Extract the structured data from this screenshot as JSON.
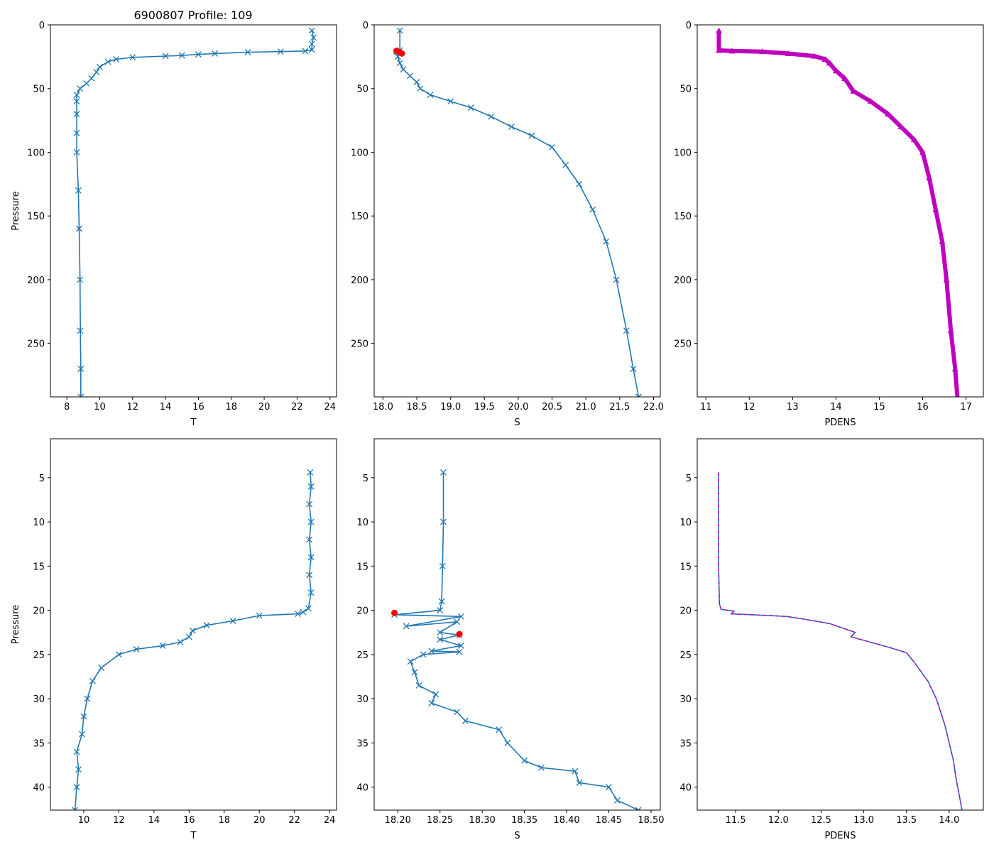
{
  "figure_title": "6900807 Profile: 109",
  "colors": {
    "series": "#1f77b4",
    "density": "#bf00bf",
    "flag": "#ff0000",
    "axis": "#000000"
  },
  "chart_data": [
    {
      "type": "line",
      "panel": "top-left",
      "title": "6900807 Profile: 109",
      "xlabel": "T",
      "ylabel": "Pressure",
      "xlim": [
        7.0,
        24.4
      ],
      "ylim": [
        292,
        0
      ],
      "xticks": [
        8,
        10,
        12,
        14,
        16,
        18,
        20,
        22,
        24
      ],
      "yticks": [
        0,
        50,
        100,
        150,
        200,
        250
      ],
      "marker": "x",
      "series": [
        {
          "name": "T",
          "color": "#1f77b4",
          "points": [
            [
              22.9,
              4.5
            ],
            [
              23.0,
              10
            ],
            [
              22.9,
              15
            ],
            [
              22.9,
              19.5
            ],
            [
              22.5,
              20.5
            ],
            [
              21.0,
              21
            ],
            [
              19.0,
              21.5
            ],
            [
              17.0,
              22.5
            ],
            [
              16.0,
              23.2
            ],
            [
              15.0,
              24
            ],
            [
              14.0,
              24.5
            ],
            [
              12.0,
              25.5
            ],
            [
              11.0,
              27
            ],
            [
              10.5,
              29
            ],
            [
              10.0,
              33
            ],
            [
              9.8,
              37
            ],
            [
              9.5,
              42
            ],
            [
              9.2,
              46
            ],
            [
              8.8,
              50
            ],
            [
              8.6,
              55
            ],
            [
              8.6,
              60
            ],
            [
              8.6,
              70
            ],
            [
              8.6,
              85
            ],
            [
              8.6,
              100
            ],
            [
              8.7,
              130
            ],
            [
              8.75,
              160
            ],
            [
              8.8,
              200
            ],
            [
              8.82,
              240
            ],
            [
              8.85,
              270
            ],
            [
              8.85,
              292
            ]
          ]
        }
      ]
    },
    {
      "type": "line",
      "panel": "top-middle",
      "xlabel": "S",
      "ylabel": "",
      "xlim": [
        17.87,
        22.1
      ],
      "ylim": [
        292,
        0
      ],
      "xticks": [
        18.0,
        18.5,
        19.0,
        19.5,
        20.0,
        20.5,
        21.0,
        21.5,
        22.0
      ],
      "yticks": [
        0,
        50,
        100,
        150,
        200,
        250
      ],
      "marker": "x",
      "series": [
        {
          "name": "S",
          "color": "#1f77b4",
          "points": [
            [
              18.25,
              4.5
            ],
            [
              18.25,
              20
            ],
            [
              18.2,
              21
            ],
            [
              18.22,
              25
            ],
            [
              18.25,
              30
            ],
            [
              18.3,
              35
            ],
            [
              18.4,
              40
            ],
            [
              18.5,
              45
            ],
            [
              18.55,
              50
            ],
            [
              18.7,
              55
            ],
            [
              19.0,
              60
            ],
            [
              19.3,
              65
            ],
            [
              19.6,
              72
            ],
            [
              19.9,
              80
            ],
            [
              20.2,
              87
            ],
            [
              20.5,
              96
            ],
            [
              20.7,
              110
            ],
            [
              20.9,
              125
            ],
            [
              21.1,
              145
            ],
            [
              21.3,
              170
            ],
            [
              21.45,
              200
            ],
            [
              21.6,
              240
            ],
            [
              21.7,
              270
            ],
            [
              21.78,
              292
            ]
          ]
        }
      ],
      "flags": {
        "name": "flagged",
        "color": "#ff0000",
        "points": [
          [
            18.2,
            20.5
          ],
          [
            18.25,
            21.5
          ],
          [
            18.28,
            22.5
          ]
        ]
      }
    },
    {
      "type": "scatter",
      "panel": "top-right",
      "xlabel": "PDENS",
      "ylabel": "",
      "xlim": [
        10.8,
        17.4
      ],
      "ylim": [
        292,
        0
      ],
      "xticks": [
        11,
        12,
        13,
        14,
        15,
        16,
        17
      ],
      "yticks": [
        0,
        50,
        100,
        150,
        200,
        250
      ],
      "marker": "^",
      "series": [
        {
          "name": "PDENS",
          "color": "#bf00bf",
          "points": [
            [
              11.3,
              4.5
            ],
            [
              11.3,
              20
            ],
            [
              11.6,
              20.5
            ],
            [
              12.3,
              21
            ],
            [
              12.9,
              22.5
            ],
            [
              13.5,
              24.5
            ],
            [
              13.75,
              27
            ],
            [
              13.85,
              30
            ],
            [
              14.0,
              36
            ],
            [
              14.2,
              42
            ],
            [
              14.4,
              52
            ],
            [
              14.8,
              60
            ],
            [
              15.2,
              70
            ],
            [
              15.5,
              80
            ],
            [
              15.8,
              90
            ],
            [
              16.0,
              100
            ],
            [
              16.15,
              120
            ],
            [
              16.3,
              145
            ],
            [
              16.45,
              170
            ],
            [
              16.55,
              200
            ],
            [
              16.65,
              240
            ],
            [
              16.75,
              270
            ],
            [
              16.8,
              292
            ]
          ]
        }
      ]
    },
    {
      "type": "line",
      "panel": "bottom-left",
      "xlabel": "T",
      "ylabel": "Pressure",
      "xlim": [
        8.1,
        24.4
      ],
      "ylim": [
        42.6,
        0.6
      ],
      "xticks": [
        10,
        12,
        14,
        16,
        18,
        20,
        22,
        24
      ],
      "yticks": [
        5,
        10,
        15,
        20,
        25,
        30,
        35,
        40
      ],
      "marker": "x",
      "series": [
        {
          "name": "T",
          "color": "#1f77b4",
          "points": [
            [
              22.9,
              4.4
            ],
            [
              22.95,
              6
            ],
            [
              22.85,
              8
            ],
            [
              22.95,
              10
            ],
            [
              22.85,
              12
            ],
            [
              22.95,
              14
            ],
            [
              22.85,
              16
            ],
            [
              22.95,
              18
            ],
            [
              22.8,
              19.8
            ],
            [
              22.5,
              20.2
            ],
            [
              22.2,
              20.4
            ],
            [
              20.0,
              20.6
            ],
            [
              18.5,
              21.2
            ],
            [
              17.0,
              21.7
            ],
            [
              16.2,
              22.3
            ],
            [
              16.0,
              23
            ],
            [
              15.5,
              23.6
            ],
            [
              14.5,
              24.0
            ],
            [
              13.0,
              24.4
            ],
            [
              12.0,
              25.0
            ],
            [
              11.0,
              26.5
            ],
            [
              10.5,
              28
            ],
            [
              10.2,
              30
            ],
            [
              10.0,
              32
            ],
            [
              9.9,
              34
            ],
            [
              9.6,
              36
            ],
            [
              9.7,
              38
            ],
            [
              9.6,
              40
            ],
            [
              9.5,
              42.6
            ]
          ]
        }
      ]
    },
    {
      "type": "line",
      "panel": "bottom-middle",
      "xlabel": "S",
      "ylabel": "",
      "xlim": [
        18.172,
        18.511
      ],
      "ylim": [
        42.6,
        0.6
      ],
      "xticks": [
        18.2,
        18.25,
        18.3,
        18.35,
        18.4,
        18.45,
        18.5
      ],
      "yticks": [
        5,
        10,
        15,
        20,
        25,
        30,
        35,
        40
      ],
      "marker": "x",
      "series": [
        {
          "name": "S",
          "color": "#1f77b4",
          "points": [
            [
              18.254,
              4.4
            ],
            [
              18.254,
              10
            ],
            [
              18.253,
              15
            ],
            [
              18.252,
              19
            ],
            [
              18.25,
              20
            ],
            [
              18.196,
              20.5
            ],
            [
              18.275,
              20.7
            ],
            [
              18.21,
              21.8
            ],
            [
              18.27,
              21.3
            ],
            [
              18.25,
              22.5
            ],
            [
              18.273,
              22.8
            ],
            [
              18.25,
              23.3
            ],
            [
              18.275,
              24.0
            ],
            [
              18.24,
              24.6
            ],
            [
              18.273,
              24.7
            ],
            [
              18.23,
              25.0
            ],
            [
              18.215,
              25.8
            ],
            [
              18.22,
              27
            ],
            [
              18.225,
              28.5
            ],
            [
              18.245,
              29.5
            ],
            [
              18.24,
              30.5
            ],
            [
              18.27,
              31.5
            ],
            [
              18.28,
              32.5
            ],
            [
              18.32,
              33.5
            ],
            [
              18.33,
              35
            ],
            [
              18.35,
              37
            ],
            [
              18.37,
              37.8
            ],
            [
              18.41,
              38.2
            ],
            [
              18.415,
              39.5
            ],
            [
              18.45,
              40
            ],
            [
              18.46,
              41.5
            ],
            [
              18.485,
              42.6
            ]
          ]
        }
      ],
      "flags": {
        "name": "flagged",
        "color": "#ff0000",
        "points": [
          [
            18.196,
            20.3
          ],
          [
            18.273,
            22.7
          ]
        ]
      }
    },
    {
      "type": "line",
      "panel": "bottom-right",
      "xlabel": "PDENS",
      "ylabel": "",
      "xlim": [
        11.05,
        14.4
      ],
      "ylim": [
        42.6,
        0.6
      ],
      "xticks": [
        11.5,
        12.0,
        12.5,
        13.0,
        13.5,
        14.0
      ],
      "yticks": [
        5,
        10,
        15,
        20,
        25,
        30,
        35,
        40
      ],
      "marker": "",
      "series": [
        {
          "name": "PDENS",
          "color": "#1f77b4",
          "overlay_color": "#bf00bf",
          "points": [
            [
              11.3,
              4.4
            ],
            [
              11.3,
              10
            ],
            [
              11.3,
              15
            ],
            [
              11.31,
              19.3
            ],
            [
              11.33,
              19.9
            ],
            [
              11.48,
              20.1
            ],
            [
              11.45,
              20.4
            ],
            [
              11.9,
              20.6
            ],
            [
              12.1,
              20.7
            ],
            [
              12.3,
              21
            ],
            [
              12.6,
              21.5
            ],
            [
              12.9,
              22.5
            ],
            [
              12.85,
              23.0
            ],
            [
              13.0,
              23.4
            ],
            [
              13.3,
              24.2
            ],
            [
              13.5,
              24.8
            ],
            [
              13.6,
              26
            ],
            [
              13.75,
              28
            ],
            [
              13.85,
              30
            ],
            [
              13.95,
              33
            ],
            [
              14.0,
              35
            ],
            [
              14.05,
              37
            ],
            [
              14.08,
              39
            ],
            [
              14.12,
              41
            ],
            [
              14.15,
              42.6
            ]
          ]
        }
      ]
    }
  ]
}
